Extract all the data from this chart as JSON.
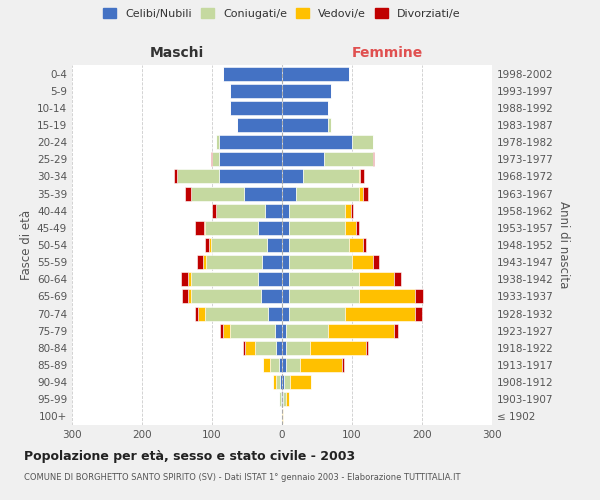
{
  "age_groups": [
    "100+",
    "95-99",
    "90-94",
    "85-89",
    "80-84",
    "75-79",
    "70-74",
    "65-69",
    "60-64",
    "55-59",
    "50-54",
    "45-49",
    "40-44",
    "35-39",
    "30-34",
    "25-29",
    "20-24",
    "15-19",
    "10-14",
    "5-9",
    "0-4"
  ],
  "birth_years": [
    "≤ 1902",
    "1903-1907",
    "1908-1912",
    "1913-1917",
    "1918-1922",
    "1923-1927",
    "1928-1932",
    "1933-1937",
    "1938-1942",
    "1943-1947",
    "1948-1952",
    "1953-1957",
    "1958-1962",
    "1963-1967",
    "1968-1972",
    "1973-1977",
    "1978-1982",
    "1983-1987",
    "1988-1992",
    "1993-1997",
    "1998-2002"
  ],
  "maschi": {
    "celibi": [
      0,
      2,
      3,
      5,
      8,
      10,
      20,
      30,
      35,
      28,
      22,
      35,
      25,
      55,
      90,
      90,
      90,
      65,
      75,
      75,
      85
    ],
    "coniugati": [
      0,
      2,
      5,
      12,
      30,
      65,
      90,
      100,
      95,
      80,
      80,
      75,
      70,
      75,
      60,
      10,
      5,
      0,
      0,
      0,
      0
    ],
    "vedovi": [
      0,
      0,
      5,
      10,
      15,
      10,
      10,
      5,
      5,
      5,
      3,
      2,
      0,
      0,
      0,
      0,
      0,
      0,
      0,
      0,
      0
    ],
    "divorziati": [
      0,
      0,
      0,
      0,
      3,
      3,
      5,
      8,
      10,
      8,
      5,
      12,
      5,
      8,
      5,
      2,
      0,
      0,
      0,
      0,
      0
    ]
  },
  "femmine": {
    "nubili": [
      0,
      2,
      3,
      5,
      5,
      5,
      10,
      10,
      10,
      10,
      10,
      10,
      10,
      20,
      30,
      60,
      100,
      65,
      65,
      70,
      95
    ],
    "coniugate": [
      0,
      3,
      8,
      20,
      35,
      60,
      80,
      100,
      100,
      90,
      85,
      80,
      80,
      90,
      80,
      70,
      30,
      5,
      0,
      0,
      0
    ],
    "vedove": [
      1,
      5,
      30,
      60,
      80,
      95,
      100,
      80,
      50,
      30,
      20,
      15,
      8,
      5,
      2,
      0,
      0,
      0,
      0,
      0,
      0
    ],
    "divorziate": [
      0,
      0,
      0,
      3,
      3,
      5,
      10,
      12,
      10,
      8,
      5,
      5,
      3,
      8,
      5,
      2,
      0,
      0,
      0,
      0,
      0
    ]
  },
  "colors": {
    "celibi": "#4472C4",
    "coniugati": "#c5d9a0",
    "vedovi": "#ffc000",
    "divorziati": "#c00000"
  },
  "xlim": 300,
  "title": "Popolazione per età, sesso e stato civile - 2003",
  "subtitle": "COMUNE DI BORGHETTO SANTO SPIRITO (SV) - Dati ISTAT 1° gennaio 2003 - Elaborazione TUTTITALIA.IT",
  "ylabel_left": "Fasce di età",
  "ylabel_right": "Anni di nascita",
  "xlabel_maschi": "Maschi",
  "xlabel_femmine": "Femmine",
  "legend_labels": [
    "Celibi/Nubili",
    "Coniugati/e",
    "Vedovi/e",
    "Divorziati/e"
  ],
  "bg_color": "#f0f0f0",
  "plot_bg_color": "#ffffff"
}
